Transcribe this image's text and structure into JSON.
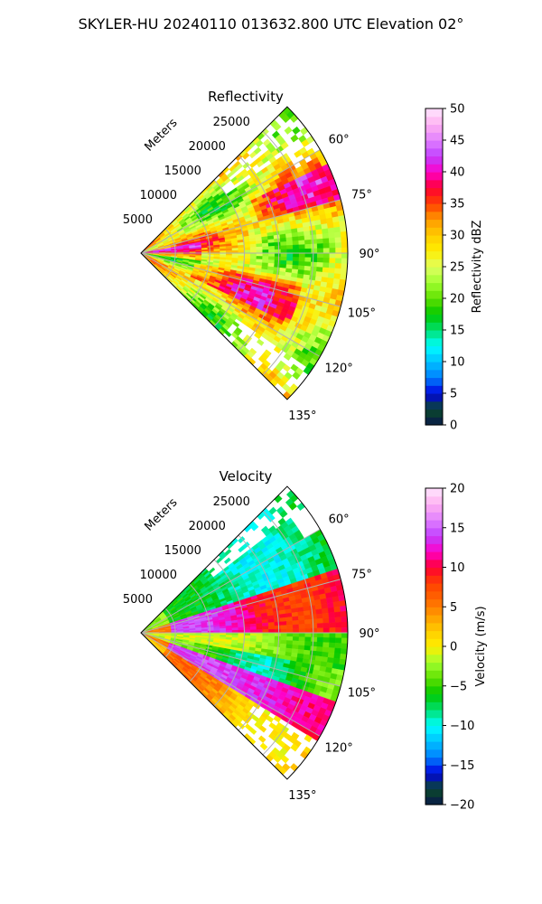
{
  "figure": {
    "suptitle": "SKYLER-HU  20240110  013632.800 UTC Elevation 02°"
  },
  "chart_data": [
    {
      "type": "heatmap",
      "title": "Reflectivity",
      "projection": "polar sector (radar PPI)",
      "radial_axis_label": "Meters",
      "range_ticks": [
        5000,
        10000,
        15000,
        20000,
        25000
      ],
      "range_tick_labels": [
        "5000",
        "10000",
        "15000",
        "20000",
        "25000"
      ],
      "max_range": 30000,
      "azimuth_ticks_deg": [
        60,
        75,
        90,
        105,
        120,
        135
      ],
      "azimuth_tick_labels": [
        "60°",
        "75°",
        "90°",
        "105°",
        "120°",
        "135°"
      ],
      "azimuth_range_deg": [
        45,
        135
      ],
      "grid": true,
      "colorbar": {
        "label": "Reflectivity dBZ",
        "range": [
          0,
          50
        ],
        "ticks": [
          0,
          5,
          10,
          15,
          20,
          25,
          30,
          35,
          40,
          45,
          50
        ],
        "tick_labels": [
          "0",
          "5",
          "10",
          "15",
          "20",
          "25",
          "30",
          "35",
          "40",
          "45",
          "50"
        ],
        "stops": [
          {
            "v": 0,
            "c": "#08174a"
          },
          {
            "v": 2.5,
            "c": "#0a4a2a"
          },
          {
            "v": 5,
            "c": "#0000e0"
          },
          {
            "v": 7.5,
            "c": "#0080ff"
          },
          {
            "v": 10,
            "c": "#00c0ff"
          },
          {
            "v": 12.5,
            "c": "#00ffff"
          },
          {
            "v": 15,
            "c": "#00e070"
          },
          {
            "v": 17.5,
            "c": "#00c800"
          },
          {
            "v": 20,
            "c": "#60e000"
          },
          {
            "v": 22.5,
            "c": "#a0ff30"
          },
          {
            "v": 25,
            "c": "#e0ff60"
          },
          {
            "v": 27.5,
            "c": "#ffee00"
          },
          {
            "v": 30,
            "c": "#ffcc00"
          },
          {
            "v": 32.5,
            "c": "#ff9900"
          },
          {
            "v": 35,
            "c": "#ff4000"
          },
          {
            "v": 37.5,
            "c": "#ff0033"
          },
          {
            "v": 40,
            "c": "#ff00c8"
          },
          {
            "v": 42.5,
            "c": "#c040ff"
          },
          {
            "v": 45,
            "c": "#e080ff"
          },
          {
            "v": 47.5,
            "c": "#ffb0f0"
          },
          {
            "v": 50,
            "c": "#ffe6ff"
          }
        ]
      },
      "field_summary": "dominant values 25-35 dBZ with 35-45 dBZ streaks; strongest (40-45 dBZ) near the radar along 85-95 deg; sparse returns at far range near 60 and 135 deg"
    },
    {
      "type": "heatmap",
      "title": "Velocity",
      "projection": "polar sector (radar PPI)",
      "radial_axis_label": "Meters",
      "range_ticks": [
        5000,
        10000,
        15000,
        20000,
        25000
      ],
      "range_tick_labels": [
        "5000",
        "10000",
        "15000",
        "20000",
        "25000"
      ],
      "max_range": 30000,
      "azimuth_ticks_deg": [
        60,
        75,
        90,
        105,
        120,
        135
      ],
      "azimuth_tick_labels": [
        "60°",
        "75°",
        "90°",
        "105°",
        "120°",
        "135°"
      ],
      "azimuth_range_deg": [
        45,
        135
      ],
      "grid": true,
      "colorbar": {
        "label": "Velocity (m/s)",
        "range": [
          -20,
          20
        ],
        "ticks": [
          -20,
          -15,
          -10,
          -5,
          0,
          5,
          10,
          15,
          20
        ],
        "tick_labels": [
          "−20",
          "−15",
          "−10",
          "−5",
          "0",
          "5",
          "10",
          "15",
          "20"
        ],
        "stops": [
          {
            "v": -20,
            "c": "#08174a"
          },
          {
            "v": -18,
            "c": "#0a4a2a"
          },
          {
            "v": -16,
            "c": "#0000e0"
          },
          {
            "v": -14,
            "c": "#0080ff"
          },
          {
            "v": -12,
            "c": "#00c0ff"
          },
          {
            "v": -10,
            "c": "#00ffff"
          },
          {
            "v": -8,
            "c": "#00e070"
          },
          {
            "v": -6,
            "c": "#00c800"
          },
          {
            "v": -4,
            "c": "#60e000"
          },
          {
            "v": -2,
            "c": "#a0ff30"
          },
          {
            "v": 0,
            "c": "#ffee00"
          },
          {
            "v": 2,
            "c": "#ffcc00"
          },
          {
            "v": 4,
            "c": "#ff9900"
          },
          {
            "v": 6,
            "c": "#ff6600"
          },
          {
            "v": 8,
            "c": "#ff4000"
          },
          {
            "v": 10,
            "c": "#ff0033"
          },
          {
            "v": 12,
            "c": "#ff00c8"
          },
          {
            "v": 14,
            "c": "#c040ff"
          },
          {
            "v": 16,
            "c": "#e080ff"
          },
          {
            "v": 18,
            "c": "#ffb0f0"
          },
          {
            "v": 20,
            "c": "#ffe6ff"
          }
        ]
      },
      "field_summary": "negative velocities (-10 to -5 m/s) toward 60-80 deg; positive band (+10 to +15 m/s) along 75-90 deg; green (-5 m/s) band near 95-105 deg; +10 to +15 band at 105-120 deg; +0 to +5 toward 125-135 deg"
    }
  ]
}
